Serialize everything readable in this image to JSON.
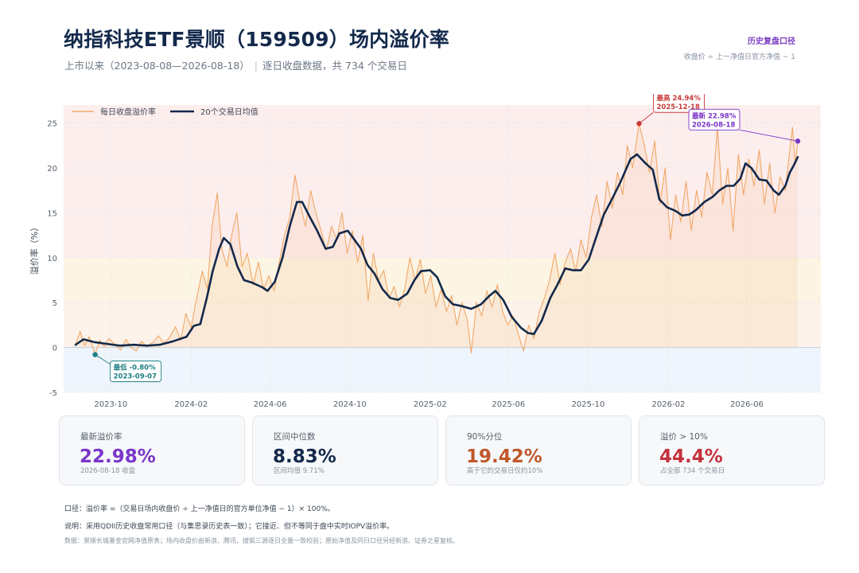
{
  "header": {
    "title": "纳指科技ETF景顺（159509）场内溢价率",
    "subtitle_range": "上市以来（2023-08-08—2026-08-18）",
    "subtitle_sep": "|",
    "subtitle_desc": "逐日收盘数据，共 734 个交易日",
    "link_label": "历史复盘口径",
    "formula": "收盘价 ÷ 上一净值日官方净值 − 1"
  },
  "cards": [
    {
      "label": "最新溢价率",
      "value": "22.98%",
      "sub": "2026-08-18 收盘",
      "color": "#7a35c9"
    },
    {
      "label": "区间中位数",
      "value": "8.83%",
      "sub": "区间均值 9.71%",
      "color": "#13294b"
    },
    {
      "label": "90%分位",
      "value": "19.42%",
      "sub": "高于它的交易日仅约10%",
      "color": "#c0582a"
    },
    {
      "label": "溢价 > 10%",
      "value": "44.4%",
      "sub": "占全部 734 个交易日",
      "color": "#c6313c"
    }
  ],
  "notes": {
    "caliber": "口径：溢价率 =（交易日场内收盘价 ÷ 上一净值日的官方单位净值 − 1）× 100%。",
    "explain": "说明：采用QDII历史收盘常用口径（与集思录历史表一致）；它接近、但不等同于盘中实时IOPV溢价率。",
    "source": "数据：景顺长城基金官网净值原表；场内收盘价由新浪、腾讯、搜狐三源逐日全量一致校验；原始净值及同日口径另经新浪、证券之星复核。"
  },
  "chart_data": {
    "type": "line",
    "ylabel": "溢价率（%）",
    "ylim": [
      -5,
      27
    ],
    "yticks": [
      -5,
      0,
      5,
      10,
      15,
      20,
      25
    ],
    "xlim": [
      "2023-08-08",
      "2026-08-18"
    ],
    "xticks": [
      "2023-10",
      "2024-02",
      "2024-06",
      "2024-10",
      "2025-02",
      "2025-06",
      "2025-10",
      "2026-02",
      "2026-06"
    ],
    "grid": true,
    "legend_position": "top-left",
    "series": [
      {
        "name": "每日收盘溢价率",
        "color": "#f0a868",
        "points": [
          [
            "2023-08-08",
            0.3
          ],
          [
            "2023-08-15",
            1.8
          ],
          [
            "2023-08-22",
            0.2
          ],
          [
            "2023-08-29",
            1.2
          ],
          [
            "2023-09-07",
            -0.8
          ],
          [
            "2023-09-14",
            0.8
          ],
          [
            "2023-09-21",
            0.1
          ],
          [
            "2023-09-28",
            1.0
          ],
          [
            "2023-10-08",
            0.3
          ],
          [
            "2023-10-16",
            -0.3
          ],
          [
            "2023-10-24",
            0.9
          ],
          [
            "2023-11-01",
            0.0
          ],
          [
            "2023-11-09",
            -0.4
          ],
          [
            "2023-11-17",
            0.7
          ],
          [
            "2023-11-25",
            0.1
          ],
          [
            "2023-12-05",
            0.6
          ],
          [
            "2023-12-13",
            1.3
          ],
          [
            "2023-12-21",
            0.5
          ],
          [
            "2023-12-29",
            1.0
          ],
          [
            "2024-01-08",
            2.3
          ],
          [
            "2024-01-16",
            0.8
          ],
          [
            "2024-01-24",
            3.8
          ],
          [
            "2024-02-01",
            2.2
          ],
          [
            "2024-02-08",
            5.0
          ],
          [
            "2024-02-18",
            8.5
          ],
          [
            "2024-02-26",
            6.5
          ],
          [
            "2024-03-04",
            13.5
          ],
          [
            "2024-03-12",
            17.2
          ],
          [
            "2024-03-19",
            11.0
          ],
          [
            "2024-03-27",
            9.0
          ],
          [
            "2024-04-03",
            12.5
          ],
          [
            "2024-04-11",
            15.0
          ],
          [
            "2024-04-19",
            9.0
          ],
          [
            "2024-04-27",
            10.5
          ],
          [
            "2024-05-06",
            7.0
          ],
          [
            "2024-05-14",
            9.5
          ],
          [
            "2024-05-22",
            6.5
          ],
          [
            "2024-05-30",
            8.0
          ],
          [
            "2024-06-07",
            6.3
          ],
          [
            "2024-06-15",
            9.5
          ],
          [
            "2024-06-23",
            12.5
          ],
          [
            "2024-07-01",
            14.5
          ],
          [
            "2024-07-09",
            19.2
          ],
          [
            "2024-07-17",
            16.0
          ],
          [
            "2024-07-25",
            13.5
          ],
          [
            "2024-08-02",
            17.5
          ],
          [
            "2024-08-10",
            15.0
          ],
          [
            "2024-08-18",
            13.0
          ],
          [
            "2024-08-26",
            10.8
          ],
          [
            "2024-09-03",
            13.5
          ],
          [
            "2024-09-11",
            12.0
          ],
          [
            "2024-09-19",
            15.0
          ],
          [
            "2024-09-27",
            10.5
          ],
          [
            "2024-10-05",
            13.0
          ],
          [
            "2024-10-13",
            9.5
          ],
          [
            "2024-10-21",
            12.5
          ],
          [
            "2024-10-29",
            5.2
          ],
          [
            "2024-11-06",
            10.5
          ],
          [
            "2024-11-14",
            7.5
          ],
          [
            "2024-11-22",
            8.6
          ],
          [
            "2024-11-30",
            5.5
          ],
          [
            "2024-12-08",
            6.8
          ],
          [
            "2024-12-16",
            4.5
          ],
          [
            "2024-12-24",
            6.5
          ],
          [
            "2025-01-01",
            10.0
          ],
          [
            "2025-01-09",
            7.5
          ],
          [
            "2025-01-17",
            9.8
          ],
          [
            "2025-01-25",
            6.0
          ],
          [
            "2025-02-02",
            8.0
          ],
          [
            "2025-02-10",
            4.5
          ],
          [
            "2025-02-18",
            6.5
          ],
          [
            "2025-02-26",
            4.0
          ],
          [
            "2025-03-06",
            5.8
          ],
          [
            "2025-03-14",
            2.5
          ],
          [
            "2025-03-22",
            5.0
          ],
          [
            "2025-03-30",
            3.0
          ],
          [
            "2025-04-05",
            -0.6
          ],
          [
            "2025-04-13",
            5.0
          ],
          [
            "2025-04-21",
            3.5
          ],
          [
            "2025-04-29",
            6.3
          ],
          [
            "2025-05-07",
            4.5
          ],
          [
            "2025-05-15",
            7.0
          ],
          [
            "2025-05-23",
            4.0
          ],
          [
            "2025-05-31",
            2.5
          ],
          [
            "2025-06-08",
            3.5
          ],
          [
            "2025-06-16",
            1.5
          ],
          [
            "2025-06-24",
            -0.4
          ],
          [
            "2025-07-02",
            2.5
          ],
          [
            "2025-07-10",
            1.0
          ],
          [
            "2025-07-18",
            4.0
          ],
          [
            "2025-07-26",
            5.5
          ],
          [
            "2025-08-03",
            7.5
          ],
          [
            "2025-08-11",
            10.5
          ],
          [
            "2025-08-19",
            7.0
          ],
          [
            "2025-08-27",
            9.5
          ],
          [
            "2025-09-04",
            11.0
          ],
          [
            "2025-09-12",
            8.5
          ],
          [
            "2025-09-20",
            12.0
          ],
          [
            "2025-09-28",
            10.0
          ],
          [
            "2025-10-06",
            14.5
          ],
          [
            "2025-10-14",
            17.0
          ],
          [
            "2025-10-22",
            13.5
          ],
          [
            "2025-10-30",
            18.5
          ],
          [
            "2025-11-07",
            15.5
          ],
          [
            "2025-11-15",
            19.5
          ],
          [
            "2025-11-23",
            17.0
          ],
          [
            "2025-11-30",
            22.5
          ],
          [
            "2025-12-08",
            20.0
          ],
          [
            "2025-12-18",
            24.94
          ],
          [
            "2025-12-26",
            22.5
          ],
          [
            "2026-01-03",
            19.5
          ],
          [
            "2026-01-11",
            23.0
          ],
          [
            "2026-01-19",
            16.0
          ],
          [
            "2026-01-27",
            20.0
          ],
          [
            "2026-02-04",
            12.0
          ],
          [
            "2026-02-12",
            17.0
          ],
          [
            "2026-02-20",
            14.0
          ],
          [
            "2026-02-28",
            18.5
          ],
          [
            "2026-03-08",
            13.0
          ],
          [
            "2026-03-16",
            17.5
          ],
          [
            "2026-03-24",
            14.5
          ],
          [
            "2026-04-01",
            19.5
          ],
          [
            "2026-04-09",
            17.0
          ],
          [
            "2026-04-17",
            24.5
          ],
          [
            "2026-04-25",
            16.0
          ],
          [
            "2026-05-03",
            20.0
          ],
          [
            "2026-05-11",
            13.0
          ],
          [
            "2026-05-19",
            21.5
          ],
          [
            "2026-05-27",
            17.0
          ],
          [
            "2026-06-04",
            21.0
          ],
          [
            "2026-06-12",
            18.0
          ],
          [
            "2026-06-20",
            22.0
          ],
          [
            "2026-06-28",
            16.0
          ],
          [
            "2026-07-06",
            20.5
          ],
          [
            "2026-07-14",
            15.0
          ],
          [
            "2026-07-22",
            19.0
          ],
          [
            "2026-07-30",
            17.5
          ],
          [
            "2026-08-05",
            21.5
          ],
          [
            "2026-08-10",
            24.5
          ],
          [
            "2026-08-14",
            20.5
          ],
          [
            "2026-08-18",
            22.98
          ]
        ]
      },
      {
        "name": "20个交易日均值",
        "color": "#13294b",
        "points": [
          [
            "2023-08-08",
            0.3
          ],
          [
            "2023-08-20",
            0.9
          ],
          [
            "2023-09-05",
            0.6
          ],
          [
            "2023-09-25",
            0.4
          ],
          [
            "2023-10-15",
            0.2
          ],
          [
            "2023-11-05",
            0.3
          ],
          [
            "2023-11-25",
            0.2
          ],
          [
            "2023-12-15",
            0.3
          ],
          [
            "2024-01-05",
            0.7
          ],
          [
            "2024-01-25",
            1.2
          ],
          [
            "2024-02-05",
            2.4
          ],
          [
            "2024-02-15",
            2.6
          ],
          [
            "2024-02-25",
            5.5
          ],
          [
            "2024-03-05",
            8.5
          ],
          [
            "2024-03-15",
            11.0
          ],
          [
            "2024-03-22",
            12.2
          ],
          [
            "2024-04-01",
            11.5
          ],
          [
            "2024-04-12",
            9.0
          ],
          [
            "2024-04-22",
            7.5
          ],
          [
            "2024-05-05",
            7.2
          ],
          [
            "2024-05-20",
            6.7
          ],
          [
            "2024-05-28",
            6.3
          ],
          [
            "2024-06-08",
            7.3
          ],
          [
            "2024-06-20",
            10.0
          ],
          [
            "2024-07-01",
            13.5
          ],
          [
            "2024-07-12",
            16.2
          ],
          [
            "2024-07-20",
            16.2
          ],
          [
            "2024-08-01",
            14.5
          ],
          [
            "2024-08-12",
            13.0
          ],
          [
            "2024-08-25",
            11.0
          ],
          [
            "2024-09-05",
            11.2
          ],
          [
            "2024-09-15",
            12.7
          ],
          [
            "2024-09-28",
            13.0
          ],
          [
            "2024-10-08",
            12.0
          ],
          [
            "2024-10-18",
            11.0
          ],
          [
            "2024-10-28",
            9.2
          ],
          [
            "2024-11-08",
            8.2
          ],
          [
            "2024-11-20",
            6.5
          ],
          [
            "2024-12-02",
            5.5
          ],
          [
            "2024-12-14",
            5.3
          ],
          [
            "2024-12-28",
            6.0
          ],
          [
            "2025-01-08",
            7.5
          ],
          [
            "2025-01-18",
            8.5
          ],
          [
            "2025-02-01",
            8.6
          ],
          [
            "2025-02-12",
            7.8
          ],
          [
            "2025-02-24",
            5.7
          ],
          [
            "2025-03-08",
            4.8
          ],
          [
            "2025-03-22",
            4.6
          ],
          [
            "2025-04-05",
            4.3
          ],
          [
            "2025-04-20",
            4.8
          ],
          [
            "2025-05-02",
            5.7
          ],
          [
            "2025-05-12",
            6.3
          ],
          [
            "2025-05-24",
            5.3
          ],
          [
            "2025-06-06",
            3.4
          ],
          [
            "2025-06-20",
            2.2
          ],
          [
            "2025-07-01",
            1.6
          ],
          [
            "2025-07-10",
            1.5
          ],
          [
            "2025-07-22",
            3.0
          ],
          [
            "2025-08-04",
            5.5
          ],
          [
            "2025-08-15",
            7.0
          ],
          [
            "2025-08-27",
            8.8
          ],
          [
            "2025-09-08",
            8.6
          ],
          [
            "2025-09-20",
            8.6
          ],
          [
            "2025-10-02",
            9.8
          ],
          [
            "2025-10-12",
            12.0
          ],
          [
            "2025-10-25",
            14.8
          ],
          [
            "2025-11-05",
            16.3
          ],
          [
            "2025-11-20",
            18.5
          ],
          [
            "2025-12-05",
            21.0
          ],
          [
            "2025-12-15",
            21.5
          ],
          [
            "2025-12-28",
            20.5
          ],
          [
            "2026-01-08",
            19.8
          ],
          [
            "2026-01-18",
            16.5
          ],
          [
            "2026-01-30",
            15.6
          ],
          [
            "2026-02-12",
            15.2
          ],
          [
            "2026-02-22",
            14.7
          ],
          [
            "2026-03-05",
            14.8
          ],
          [
            "2026-03-15",
            15.3
          ],
          [
            "2026-03-28",
            16.2
          ],
          [
            "2026-04-10",
            16.8
          ],
          [
            "2026-04-20",
            17.5
          ],
          [
            "2026-05-01",
            18.0
          ],
          [
            "2026-05-12",
            18.0
          ],
          [
            "2026-05-22",
            18.8
          ],
          [
            "2026-05-30",
            20.5
          ],
          [
            "2026-06-08",
            20.0
          ],
          [
            "2026-06-20",
            18.7
          ],
          [
            "2026-07-01",
            18.6
          ],
          [
            "2026-07-12",
            17.5
          ],
          [
            "2026-07-20",
            17.0
          ],
          [
            "2026-07-30",
            18.0
          ],
          [
            "2026-08-06",
            19.5
          ],
          [
            "2026-08-12",
            20.3
          ],
          [
            "2026-08-18",
            21.2
          ]
        ]
      }
    ],
    "bands": [
      {
        "from": 10,
        "to": 27,
        "color": "#fdeeee"
      },
      {
        "from": 5,
        "to": 10,
        "color": "#fdf5e4"
      },
      {
        "from": 0,
        "to": 5,
        "color": "#fdf3ea"
      },
      {
        "from": -5,
        "to": 0,
        "color": "#eef5fc"
      }
    ],
    "annotations": [
      {
        "label": "最高",
        "value_text": "24.94%",
        "date": "2025-12-18",
        "x": "2025-12-18",
        "y": 24.94,
        "color": "#c93a3a",
        "place": "above"
      },
      {
        "label": "最新",
        "value_text": "22.98%",
        "date": "2026-08-18",
        "x": "2026-08-18",
        "y": 22.98,
        "color": "#7a35c9",
        "place": "left"
      },
      {
        "label": "最低",
        "value_text": "-0.80%",
        "date": "2023-09-07",
        "x": "2023-09-07",
        "y": -0.8,
        "color": "#1f7f80",
        "place": "below"
      }
    ]
  }
}
